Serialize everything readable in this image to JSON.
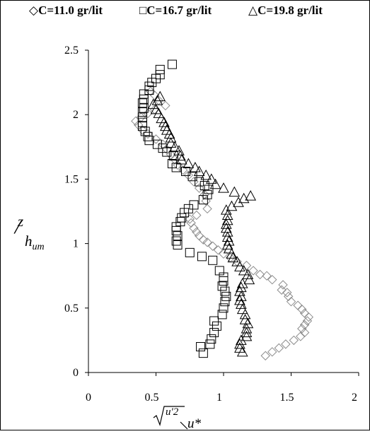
{
  "chart_data": {
    "type": "scatter",
    "xlim": [
      0,
      2
    ],
    "ylim": [
      0,
      2.5
    ],
    "x_ticks": [
      "0",
      "0.5",
      "1",
      "1.5",
      "2"
    ],
    "y_ticks": [
      "0",
      "0.5",
      "1",
      "1.5",
      "2",
      "2.5"
    ],
    "ylabel": {
      "num": "z",
      "den": "h",
      "den_sub": "um"
    },
    "xlabel": {
      "num": "u'2",
      "den": "u*"
    },
    "legend_position": "top",
    "grid": false,
    "series": [
      {
        "name": "C=11.0 gr/lit",
        "marker": "diamond",
        "color": "#8c8c8c",
        "points": [
          [
            1.31,
            0.13
          ],
          [
            1.36,
            0.16
          ],
          [
            1.41,
            0.19
          ],
          [
            1.46,
            0.22
          ],
          [
            1.52,
            0.25
          ],
          [
            1.57,
            0.28
          ],
          [
            1.6,
            0.31
          ],
          [
            1.58,
            0.34
          ],
          [
            1.6,
            0.37
          ],
          [
            1.62,
            0.4
          ],
          [
            1.63,
            0.43
          ],
          [
            1.6,
            0.46
          ],
          [
            1.58,
            0.49
          ],
          [
            1.55,
            0.52
          ],
          [
            1.5,
            0.55
          ],
          [
            1.48,
            0.59
          ],
          [
            1.47,
            0.62
          ],
          [
            1.43,
            0.64
          ],
          [
            1.44,
            0.68
          ],
          [
            1.36,
            0.72
          ],
          [
            1.32,
            0.75
          ],
          [
            1.27,
            0.76
          ],
          [
            1.22,
            0.79
          ],
          [
            1.17,
            0.83
          ],
          [
            1.1,
            0.86
          ],
          [
            1.05,
            0.89
          ],
          [
            1.0,
            0.92
          ],
          [
            0.96,
            0.95
          ],
          [
            0.92,
            0.98
          ],
          [
            0.88,
            1.01
          ],
          [
            0.85,
            1.03
          ],
          [
            0.82,
            1.06
          ],
          [
            0.8,
            1.09
          ],
          [
            0.78,
            1.12
          ],
          [
            0.76,
            1.16
          ],
          [
            0.75,
            1.19
          ],
          [
            0.8,
            1.22
          ],
          [
            0.88,
            1.27
          ],
          [
            0.87,
            1.33
          ],
          [
            0.86,
            1.38
          ],
          [
            0.82,
            1.43
          ],
          [
            0.78,
            1.48
          ],
          [
            0.74,
            1.53
          ],
          [
            0.7,
            1.57
          ],
          [
            0.66,
            1.61
          ],
          [
            0.64,
            1.65
          ],
          [
            0.61,
            1.69
          ],
          [
            0.58,
            1.73
          ],
          [
            0.55,
            1.77
          ],
          [
            0.5,
            1.81
          ],
          [
            0.44,
            1.85
          ],
          [
            0.4,
            1.88
          ],
          [
            0.37,
            1.92
          ],
          [
            0.35,
            1.95
          ],
          [
            0.39,
            1.98
          ],
          [
            0.44,
            2.01
          ],
          [
            0.49,
            2.04
          ],
          [
            0.57,
            2.07
          ],
          [
            0.52,
            2.11
          ],
          [
            0.49,
            2.15
          ],
          [
            0.46,
            2.18
          ]
        ]
      },
      {
        "name": "C=16.7 gr/lit",
        "marker": "square",
        "color": "#000000",
        "points": [
          [
            0.85,
            0.15
          ],
          [
            0.83,
            0.2
          ],
          [
            0.9,
            0.22
          ],
          [
            0.91,
            0.26
          ],
          [
            0.93,
            0.31
          ],
          [
            0.95,
            0.36
          ],
          [
            0.93,
            0.4
          ],
          [
            0.99,
            0.45
          ],
          [
            1.0,
            0.5
          ],
          [
            1.01,
            0.55
          ],
          [
            1.02,
            0.59
          ],
          [
            1.01,
            0.63
          ],
          [
            0.99,
            0.67
          ],
          [
            1.0,
            0.71
          ],
          [
            1.0,
            0.74
          ],
          [
            0.97,
            0.79
          ],
          [
            0.92,
            0.87
          ],
          [
            0.84,
            0.9
          ],
          [
            0.75,
            0.93
          ],
          [
            0.66,
            0.99
          ],
          [
            0.65,
            1.02
          ],
          [
            0.66,
            1.06
          ],
          [
            0.65,
            1.1
          ],
          [
            0.65,
            1.13
          ],
          [
            0.68,
            1.17
          ],
          [
            0.69,
            1.2
          ],
          [
            0.71,
            1.24
          ],
          [
            0.74,
            1.27
          ],
          [
            0.78,
            1.3
          ],
          [
            0.85,
            1.34
          ],
          [
            0.88,
            1.38
          ],
          [
            0.89,
            1.42
          ],
          [
            0.86,
            1.45
          ],
          [
            0.82,
            1.48
          ],
          [
            0.77,
            1.52
          ],
          [
            0.72,
            1.56
          ],
          [
            0.65,
            1.59
          ],
          [
            0.62,
            1.62
          ],
          [
            0.63,
            1.68
          ],
          [
            0.58,
            1.71
          ],
          [
            0.55,
            1.74
          ],
          [
            0.51,
            1.77
          ],
          [
            0.45,
            1.8
          ],
          [
            0.44,
            1.83
          ],
          [
            0.42,
            1.87
          ],
          [
            0.4,
            1.91
          ],
          [
            0.4,
            1.94
          ],
          [
            0.4,
            1.98
          ],
          [
            0.4,
            2.02
          ],
          [
            0.41,
            2.05
          ],
          [
            0.4,
            2.09
          ],
          [
            0.41,
            2.12
          ],
          [
            0.41,
            2.16
          ],
          [
            0.45,
            2.19
          ],
          [
            0.45,
            2.22
          ],
          [
            0.47,
            2.25
          ],
          [
            0.5,
            2.28
          ],
          [
            0.53,
            2.31
          ],
          [
            0.53,
            2.35
          ],
          [
            0.62,
            2.39
          ]
        ]
      },
      {
        "name": "C=19.8 gr/lit",
        "marker": "triangle",
        "color": "#000000",
        "points": [
          [
            1.14,
            0.16
          ],
          [
            1.12,
            0.19
          ],
          [
            1.12,
            0.22
          ],
          [
            1.13,
            0.25
          ],
          [
            1.17,
            0.28
          ],
          [
            1.17,
            0.31
          ],
          [
            1.17,
            0.34
          ],
          [
            1.18,
            0.38
          ],
          [
            1.16,
            0.41
          ],
          [
            1.16,
            0.45
          ],
          [
            1.14,
            0.49
          ],
          [
            1.13,
            0.53
          ],
          [
            1.12,
            0.56
          ],
          [
            1.13,
            0.59
          ],
          [
            1.12,
            0.63
          ],
          [
            1.13,
            0.66
          ],
          [
            1.14,
            0.69
          ],
          [
            1.19,
            0.72
          ],
          [
            1.18,
            0.76
          ],
          [
            1.15,
            0.79
          ],
          [
            1.12,
            0.82
          ],
          [
            1.1,
            0.86
          ],
          [
            1.07,
            0.89
          ],
          [
            1.06,
            0.92
          ],
          [
            1.04,
            0.96
          ],
          [
            1.03,
            0.99
          ],
          [
            1.04,
            1.02
          ],
          [
            1.03,
            1.05
          ],
          [
            1.03,
            1.09
          ],
          [
            1.02,
            1.12
          ],
          [
            1.02,
            1.15
          ],
          [
            1.03,
            1.18
          ],
          [
            1.03,
            1.22
          ],
          [
            1.02,
            1.26
          ],
          [
            1.06,
            1.29
          ],
          [
            1.11,
            1.32
          ],
          [
            1.15,
            1.35
          ],
          [
            1.2,
            1.37
          ],
          [
            1.08,
            1.4
          ],
          [
            1.0,
            1.43
          ],
          [
            0.94,
            1.46
          ],
          [
            0.91,
            1.5
          ],
          [
            0.87,
            1.53
          ],
          [
            0.82,
            1.56
          ],
          [
            0.79,
            1.59
          ],
          [
            0.74,
            1.62
          ],
          [
            0.69,
            1.65
          ],
          [
            0.68,
            1.68
          ],
          [
            0.67,
            1.72
          ],
          [
            0.64,
            1.75
          ],
          [
            0.61,
            1.78
          ],
          [
            0.61,
            1.82
          ],
          [
            0.6,
            1.85
          ],
          [
            0.58,
            1.88
          ],
          [
            0.57,
            1.91
          ],
          [
            0.56,
            1.94
          ],
          [
            0.54,
            1.97
          ],
          [
            0.52,
            2.01
          ],
          [
            0.5,
            2.04
          ],
          [
            0.48,
            2.08
          ],
          [
            0.51,
            2.11
          ],
          [
            0.53,
            2.14
          ]
        ]
      }
    ]
  }
}
